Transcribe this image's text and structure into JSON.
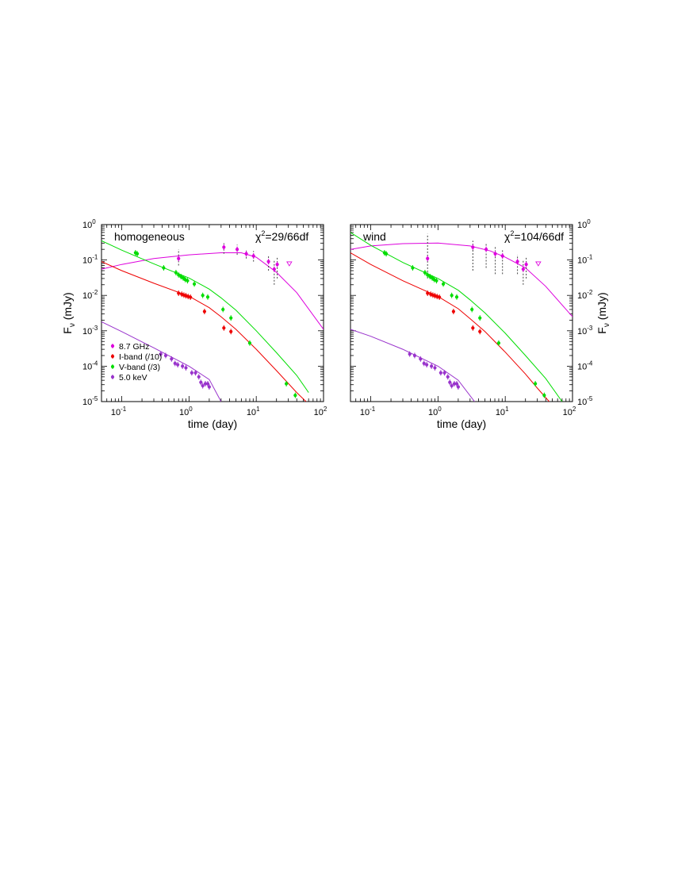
{
  "chart_data": [
    {
      "type": "scatter",
      "label": "homogeneous",
      "chi2_text": "=29/66df",
      "chi_symbol": "χ",
      "chi_sup": "2",
      "xlabel": "time (day)",
      "ylabel_main": "F",
      "ylabel_sub": "ν",
      "ylabel_unit": " (mJy)",
      "xscale": "log",
      "yscale": "log",
      "xlim": [
        0.05,
        100
      ],
      "ylim": [
        1e-05,
        1
      ],
      "x_ticks": [
        {
          "v": 0.1,
          "base": "10",
          "exp": "-1"
        },
        {
          "v": 1,
          "base": "10",
          "exp": "0"
        },
        {
          "v": 10,
          "base": "10",
          "exp": "1"
        },
        {
          "v": 100,
          "base": "10",
          "exp": "2"
        }
      ],
      "y_ticks": [
        {
          "v": 1,
          "base": "10",
          "exp": "0"
        },
        {
          "v": 0.1,
          "base": "10",
          "exp": "-1"
        },
        {
          "v": 0.01,
          "base": "10",
          "exp": "-2"
        },
        {
          "v": 0.001,
          "base": "10",
          "exp": "-3"
        },
        {
          "v": 0.0001,
          "base": "10",
          "exp": "-4"
        },
        {
          "v": 1e-05,
          "base": "10",
          "exp": "-5"
        }
      ],
      "y_tick_side": "left",
      "show_legend": true,
      "legend_position": "bottom-left",
      "series": [
        {
          "name": "8.7 GHz",
          "color": "#dd00dd",
          "points": [
            [
              0.7,
              0.11
            ],
            [
              3.3,
              0.23
            ],
            [
              5.2,
              0.2
            ],
            [
              7.1,
              0.15
            ],
            [
              9.1,
              0.13
            ],
            [
              15.2,
              0.09
            ],
            [
              18.5,
              0.055
            ],
            [
              20.5,
              0.075
            ]
          ],
          "errs": [
            [
              0.07,
              0.2
            ],
            [
              0.15,
              0.3
            ],
            [
              0.14,
              0.27
            ],
            [
              0.11,
              0.2
            ],
            [
              0.09,
              0.18
            ],
            [
              0.05,
              0.14
            ],
            [
              0.02,
              0.1
            ],
            [
              0.03,
              0.12
            ]
          ],
          "upper_limits": [
            [
              31,
              0.08
            ]
          ],
          "model": [
            [
              0.05,
              0.055
            ],
            [
              0.1,
              0.075
            ],
            [
              0.3,
              0.11
            ],
            [
              1,
              0.14
            ],
            [
              3,
              0.16
            ],
            [
              6,
              0.16
            ],
            [
              10,
              0.12
            ],
            [
              20,
              0.045
            ],
            [
              40,
              0.012
            ],
            [
              100,
              0.0011
            ]
          ]
        },
        {
          "name": "I-band (/10)",
          "color": "#ee0000",
          "points": [
            [
              0.7,
              0.0115
            ],
            [
              0.78,
              0.0108
            ],
            [
              0.84,
              0.0102
            ],
            [
              0.9,
              0.0098
            ],
            [
              0.97,
              0.0093
            ],
            [
              1.05,
              0.0089
            ],
            [
              1.7,
              0.0035
            ],
            [
              3.3,
              0.0012
            ],
            [
              4.2,
              0.00095
            ]
          ],
          "errs": [],
          "upper_limits": [],
          "model": [
            [
              0.05,
              0.09
            ],
            [
              0.1,
              0.05
            ],
            [
              0.3,
              0.022
            ],
            [
              1,
              0.0095
            ],
            [
              2,
              0.0045
            ],
            [
              3,
              0.0025
            ],
            [
              5,
              0.0011
            ],
            [
              10,
              0.0003
            ],
            [
              20,
              7.5e-05
            ],
            [
              40,
              1.8e-05
            ],
            [
              55,
              1e-05
            ]
          ]
        },
        {
          "name": "V-band (/3)",
          "color": "#00dd00",
          "points": [
            [
              0.16,
              0.16
            ],
            [
              0.17,
              0.15
            ],
            [
              0.42,
              0.06
            ],
            [
              0.64,
              0.044
            ],
            [
              0.7,
              0.038
            ],
            [
              0.76,
              0.034
            ],
            [
              0.82,
              0.031
            ],
            [
              0.88,
              0.028
            ],
            [
              0.95,
              0.026
            ],
            [
              1.2,
              0.021
            ],
            [
              1.6,
              0.01
            ],
            [
              1.9,
              0.009
            ],
            [
              3.2,
              0.004
            ],
            [
              4.2,
              0.0023
            ],
            [
              8,
              0.00045
            ],
            [
              28,
              3.2e-05
            ],
            [
              38,
              1.5e-05
            ]
          ],
          "errs": [],
          "upper_limits": [],
          "model": [
            [
              0.05,
              0.35
            ],
            [
              0.1,
              0.19
            ],
            [
              0.3,
              0.078
            ],
            [
              1,
              0.031
            ],
            [
              2,
              0.015
            ],
            [
              3,
              0.0085
            ],
            [
              5,
              0.0038
            ],
            [
              10,
              0.001
            ],
            [
              20,
              0.00024
            ],
            [
              40,
              5.5e-05
            ],
            [
              60,
              1.8e-05
            ]
          ]
        },
        {
          "name": "5.0 keV",
          "color": "#9933cc",
          "points": [
            [
              0.38,
              0.00022
            ],
            [
              0.45,
              0.0002
            ],
            [
              0.55,
              0.00016
            ],
            [
              0.62,
              0.00012
            ],
            [
              0.68,
              0.00011
            ],
            [
              0.8,
              0.0001
            ],
            [
              0.9,
              9e-05
            ],
            [
              1.1,
              6.5e-05
            ],
            [
              1.25,
              6.5e-05
            ],
            [
              1.4,
              5e-05
            ],
            [
              1.5,
              3.5e-05
            ],
            [
              1.6,
              2.8e-05
            ],
            [
              1.75,
              3.2e-05
            ],
            [
              1.9,
              3.2e-05
            ],
            [
              2,
              2.6e-05
            ]
          ],
          "errs": [],
          "upper_limits": [],
          "model": [
            [
              0.05,
              0.0018
            ],
            [
              0.1,
              0.00095
            ],
            [
              0.3,
              0.00033
            ],
            [
              1,
              0.0001
            ],
            [
              2,
              4.2e-05
            ],
            [
              3,
              1e-05
            ]
          ]
        }
      ]
    },
    {
      "type": "scatter",
      "label": "wind",
      "chi2_text": "=104/66df",
      "chi_symbol": "χ",
      "chi_sup": "2",
      "xlabel": "time (day)",
      "ylabel_main": "F",
      "ylabel_sub": "ν",
      "ylabel_unit": " (mJy)",
      "xscale": "log",
      "yscale": "log",
      "xlim": [
        0.05,
        100
      ],
      "ylim": [
        1e-05,
        1
      ],
      "x_ticks": [
        {
          "v": 0.1,
          "base": "10",
          "exp": "-1"
        },
        {
          "v": 1,
          "base": "10",
          "exp": "0"
        },
        {
          "v": 10,
          "base": "10",
          "exp": "1"
        },
        {
          "v": 100,
          "base": "10",
          "exp": "2"
        }
      ],
      "y_ticks": [
        {
          "v": 1,
          "base": "10",
          "exp": "0"
        },
        {
          "v": 0.1,
          "base": "10",
          "exp": "-1"
        },
        {
          "v": 0.01,
          "base": "10",
          "exp": "-2"
        },
        {
          "v": 0.001,
          "base": "10",
          "exp": "-3"
        },
        {
          "v": 0.0001,
          "base": "10",
          "exp": "-4"
        },
        {
          "v": 1e-05,
          "base": "10",
          "exp": "-5"
        }
      ],
      "y_tick_side": "right",
      "show_legend": false,
      "series": [
        {
          "name": "8.7 GHz",
          "color": "#dd00dd",
          "points": [
            [
              0.7,
              0.11
            ],
            [
              3.3,
              0.23
            ],
            [
              5.2,
              0.2
            ],
            [
              7.1,
              0.15
            ],
            [
              9.1,
              0.13
            ],
            [
              15.2,
              0.09
            ],
            [
              18.5,
              0.055
            ],
            [
              20.5,
              0.075
            ]
          ],
          "errs": [
            [
              0.03,
              0.55
            ],
            [
              0.05,
              0.35
            ],
            [
              0.06,
              0.3
            ],
            [
              0.04,
              0.24
            ],
            [
              0.04,
              0.2
            ],
            [
              0.04,
              0.14
            ],
            [
              0.02,
              0.1
            ],
            [
              0.03,
              0.12
            ]
          ],
          "upper_limits": [
            [
              31,
              0.08
            ]
          ],
          "model": [
            [
              0.05,
              0.2
            ],
            [
              0.1,
              0.25
            ],
            [
              0.3,
              0.29
            ],
            [
              1,
              0.3
            ],
            [
              3,
              0.25
            ],
            [
              6,
              0.18
            ],
            [
              10,
              0.12
            ],
            [
              20,
              0.06
            ],
            [
              40,
              0.018
            ],
            [
              100,
              0.0025
            ]
          ]
        },
        {
          "name": "I-band (/10)",
          "color": "#ee0000",
          "points": [
            [
              0.7,
              0.0115
            ],
            [
              0.78,
              0.0108
            ],
            [
              0.84,
              0.0102
            ],
            [
              0.9,
              0.0098
            ],
            [
              0.97,
              0.0093
            ],
            [
              1.05,
              0.0089
            ],
            [
              1.7,
              0.0035
            ],
            [
              3.3,
              0.0012
            ],
            [
              4.2,
              0.00095
            ]
          ],
          "errs": [],
          "upper_limits": [],
          "model": [
            [
              0.05,
              0.16
            ],
            [
              0.1,
              0.075
            ],
            [
              0.3,
              0.026
            ],
            [
              1,
              0.0093
            ],
            [
              2,
              0.0042
            ],
            [
              3,
              0.0022
            ],
            [
              5,
              0.00095
            ],
            [
              10,
              0.00025
            ],
            [
              20,
              6e-05
            ],
            [
              30,
              2.4e-05
            ],
            [
              45,
              1e-05
            ]
          ]
        },
        {
          "name": "V-band (/3)",
          "color": "#00dd00",
          "points": [
            [
              0.16,
              0.16
            ],
            [
              0.17,
              0.15
            ],
            [
              0.42,
              0.06
            ],
            [
              0.64,
              0.044
            ],
            [
              0.7,
              0.038
            ],
            [
              0.76,
              0.034
            ],
            [
              0.82,
              0.031
            ],
            [
              0.88,
              0.028
            ],
            [
              0.95,
              0.026
            ],
            [
              1.2,
              0.021
            ],
            [
              1.6,
              0.01
            ],
            [
              1.9,
              0.009
            ],
            [
              3.2,
              0.004
            ],
            [
              4.2,
              0.0023
            ],
            [
              8,
              0.00045
            ],
            [
              28,
              3.2e-05
            ],
            [
              38,
              1.5e-05
            ]
          ],
          "errs": [],
          "upper_limits": [],
          "model": [
            [
              0.05,
              0.6
            ],
            [
              0.1,
              0.26
            ],
            [
              0.3,
              0.085
            ],
            [
              1,
              0.03
            ],
            [
              2,
              0.014
            ],
            [
              3,
              0.0075
            ],
            [
              5,
              0.0032
            ],
            [
              10,
              0.00085
            ],
            [
              20,
              0.0002
            ],
            [
              40,
              4.5e-05
            ],
            [
              70,
              1e-05
            ]
          ]
        },
        {
          "name": "5.0 keV",
          "color": "#9933cc",
          "points": [
            [
              0.38,
              0.00022
            ],
            [
              0.45,
              0.0002
            ],
            [
              0.55,
              0.00016
            ],
            [
              0.62,
              0.00012
            ],
            [
              0.68,
              0.00011
            ],
            [
              0.8,
              0.0001
            ],
            [
              0.9,
              9e-05
            ],
            [
              1.1,
              6.5e-05
            ],
            [
              1.25,
              6.5e-05
            ],
            [
              1.4,
              5e-05
            ],
            [
              1.5,
              3.5e-05
            ],
            [
              1.6,
              2.8e-05
            ],
            [
              1.75,
              3.2e-05
            ],
            [
              1.9,
              3.2e-05
            ],
            [
              2,
              2.6e-05
            ]
          ],
          "errs": [],
          "upper_limits": [],
          "model": [
            [
              0.05,
              0.0011
            ],
            [
              0.1,
              0.0007
            ],
            [
              0.3,
              0.0003
            ],
            [
              1,
              0.0001
            ],
            [
              2,
              4e-05
            ],
            [
              3.5,
              1e-05
            ]
          ]
        }
      ]
    }
  ]
}
